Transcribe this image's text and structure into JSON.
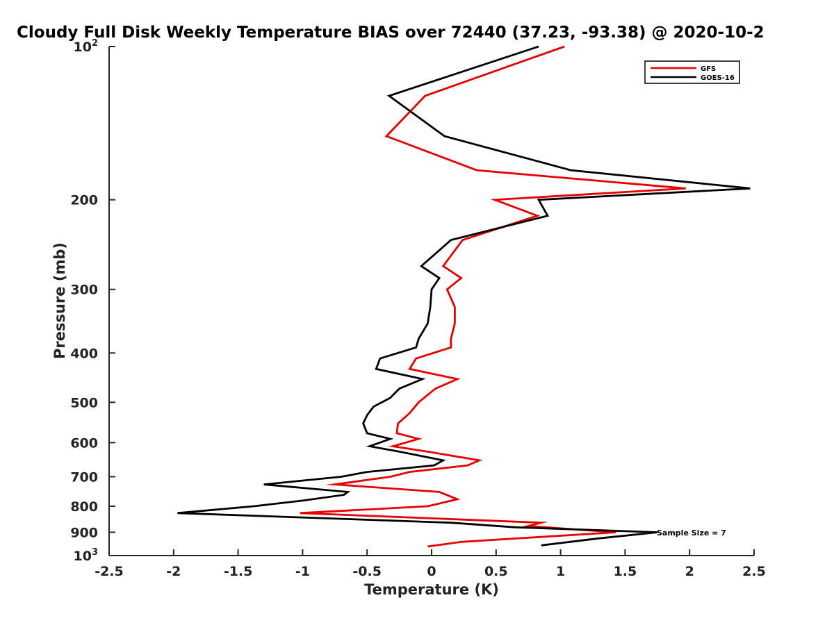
{
  "chart_data": {
    "type": "line",
    "title": "Cloudy Full Disk Weekly Temperature BIAS over 72440 (37.23, -93.38) @ 2020-10-2",
    "xlabel": "Temperature (K)",
    "ylabel": "Pressure (mb)",
    "xlim": [
      -2.5,
      2.5
    ],
    "ylim": [
      100,
      1000
    ],
    "y_scale": "log",
    "y_reversed": true,
    "x_ticks": [
      "-2.5",
      "-2",
      "-1.5",
      "-1",
      "-0.5",
      "0",
      "0.5",
      "1",
      "1.5",
      "2",
      "2.5"
    ],
    "y_ticks": [
      {
        "value": 100,
        "label": "10",
        "sup": "2"
      },
      {
        "value": 200,
        "label": "200",
        "sup": ""
      },
      {
        "value": 300,
        "label": "300",
        "sup": ""
      },
      {
        "value": 400,
        "label": "400",
        "sup": ""
      },
      {
        "value": 500,
        "label": "500",
        "sup": ""
      },
      {
        "value": 600,
        "label": "600",
        "sup": ""
      },
      {
        "value": 700,
        "label": "700",
        "sup": ""
      },
      {
        "value": 800,
        "label": "800",
        "sup": ""
      },
      {
        "value": 900,
        "label": "900",
        "sup": ""
      },
      {
        "value": 1000,
        "label": "10",
        "sup": "3"
      }
    ],
    "legend_position": "top-right",
    "grid": false,
    "annotation": "Sample Size = 7",
    "series": [
      {
        "name": "GFS",
        "color": "#e60000",
        "points": [
          [
            1.03,
            100
          ],
          [
            -0.05,
            125
          ],
          [
            -0.35,
            150
          ],
          [
            0.35,
            175
          ],
          [
            1.97,
            190
          ],
          [
            0.49,
            200
          ],
          [
            0.82,
            215
          ],
          [
            0.24,
            240
          ],
          [
            0.09,
            270
          ],
          [
            0.23,
            285
          ],
          [
            0.12,
            300
          ],
          [
            0.18,
            325
          ],
          [
            0.18,
            350
          ],
          [
            0.15,
            375
          ],
          [
            0.15,
            390
          ],
          [
            -0.12,
            410
          ],
          [
            -0.17,
            430
          ],
          [
            0.2,
            450
          ],
          [
            0.03,
            470
          ],
          [
            -0.1,
            500
          ],
          [
            -0.17,
            525
          ],
          [
            -0.26,
            550
          ],
          [
            -0.27,
            575
          ],
          [
            -0.1,
            590
          ],
          [
            -0.3,
            610
          ],
          [
            -0.03,
            625
          ],
          [
            0.37,
            650
          ],
          [
            0.28,
            665
          ],
          [
            -0.17,
            685
          ],
          [
            -0.32,
            700
          ],
          [
            -0.75,
            725
          ],
          [
            0.06,
            750
          ],
          [
            0.2,
            775
          ],
          [
            -0.03,
            800
          ],
          [
            -1.02,
            825
          ],
          [
            0.85,
            862
          ],
          [
            0.75,
            875
          ],
          [
            1.43,
            900
          ],
          [
            0.23,
            940
          ],
          [
            -0.03,
            960
          ]
        ]
      },
      {
        "name": "GOES-16",
        "color": "#000000",
        "points": [
          [
            0.83,
            100
          ],
          [
            -0.33,
            125
          ],
          [
            0.1,
            150
          ],
          [
            1.08,
            175
          ],
          [
            2.47,
            190
          ],
          [
            0.83,
            200
          ],
          [
            0.9,
            215
          ],
          [
            0.15,
            240
          ],
          [
            -0.08,
            270
          ],
          [
            0.06,
            285
          ],
          [
            0.0,
            300
          ],
          [
            -0.01,
            325
          ],
          [
            -0.03,
            350
          ],
          [
            -0.1,
            375
          ],
          [
            -0.12,
            390
          ],
          [
            -0.4,
            410
          ],
          [
            -0.43,
            430
          ],
          [
            -0.07,
            450
          ],
          [
            -0.25,
            470
          ],
          [
            -0.32,
            490
          ],
          [
            -0.45,
            510
          ],
          [
            -0.5,
            530
          ],
          [
            -0.53,
            550
          ],
          [
            -0.5,
            575
          ],
          [
            -0.32,
            590
          ],
          [
            -0.48,
            610
          ],
          [
            -0.25,
            625
          ],
          [
            0.09,
            650
          ],
          [
            0.02,
            665
          ],
          [
            -0.5,
            685
          ],
          [
            -0.7,
            700
          ],
          [
            -1.3,
            725
          ],
          [
            -0.65,
            750
          ],
          [
            -0.68,
            760
          ],
          [
            -1.0,
            780
          ],
          [
            -1.38,
            800
          ],
          [
            -1.97,
            825
          ],
          [
            0.15,
            862
          ],
          [
            0.65,
            880
          ],
          [
            1.75,
            900
          ],
          [
            1.3,
            925
          ],
          [
            0.85,
            955
          ]
        ]
      }
    ]
  }
}
